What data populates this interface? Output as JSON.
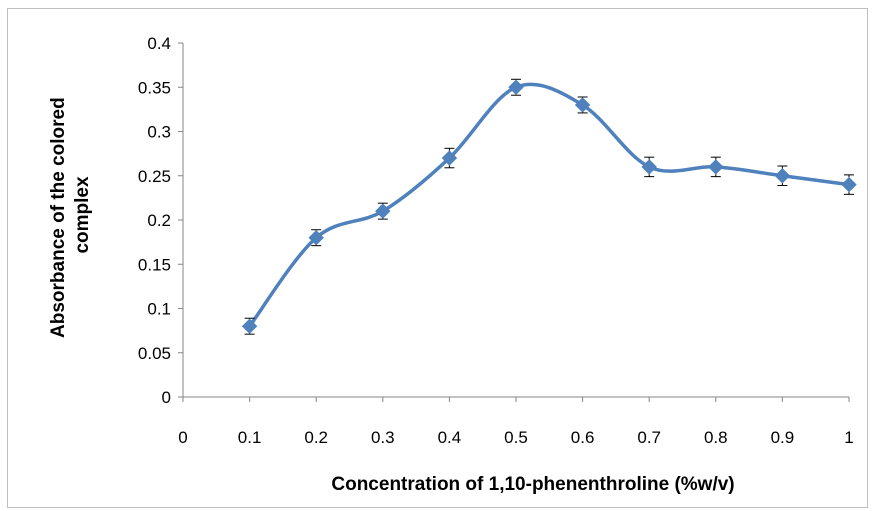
{
  "chart_data": {
    "type": "line",
    "smooth": true,
    "xlabel": "Concentration of 1,10-phenenthroline (%w/v)",
    "ylabel_lines": [
      "Absorbance of the colored",
      "complex"
    ],
    "x": [
      0.1,
      0.2,
      0.3,
      0.4,
      0.5,
      0.6,
      0.7,
      0.8,
      0.9,
      1.0
    ],
    "series": [
      {
        "values": [
          0.08,
          0.18,
          0.21,
          0.27,
          0.35,
          0.33,
          0.26,
          0.26,
          0.25,
          0.24
        ],
        "error": [
          0.009,
          0.009,
          0.009,
          0.011,
          0.009,
          0.009,
          0.011,
          0.011,
          0.011,
          0.011
        ],
        "color": "#4f81bd",
        "marker": "diamond"
      }
    ],
    "xlim": [
      0,
      1
    ],
    "ylim": [
      0,
      0.4
    ],
    "x_ticks": [
      "0",
      "0.1",
      "0.2",
      "0.3",
      "0.4",
      "0.5",
      "0.6",
      "0.7",
      "0.8",
      "0.9",
      "1"
    ],
    "y_ticks": [
      "0",
      "0.05",
      "0.1",
      "0.15",
      "0.2",
      "0.25",
      "0.3",
      "0.35",
      "0.4"
    ],
    "grid": false,
    "legend": "none",
    "error_bars": true
  }
}
